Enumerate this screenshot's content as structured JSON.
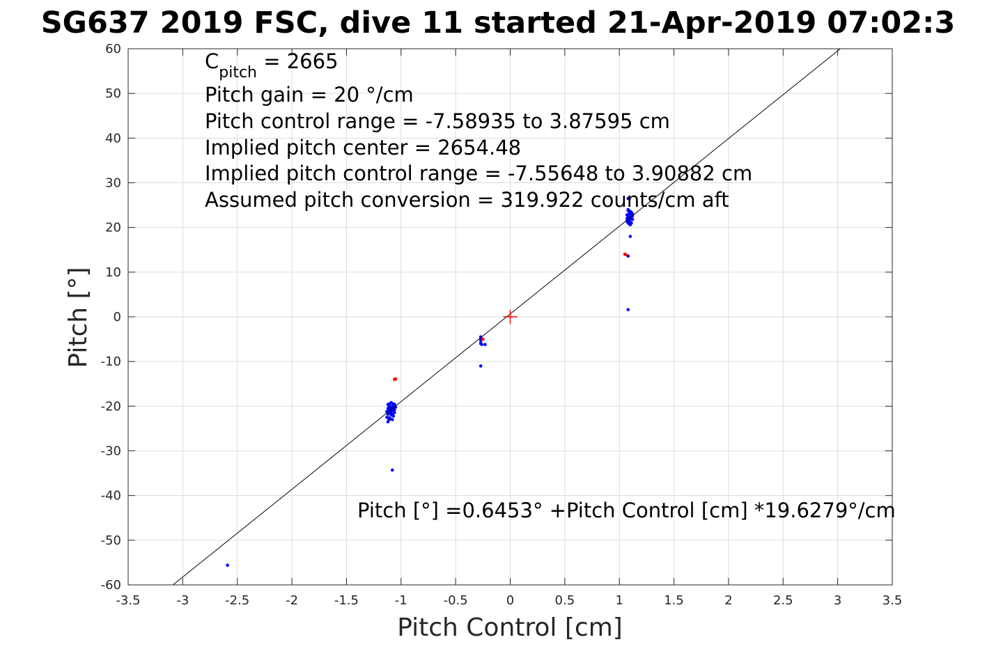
{
  "chart_data": {
    "type": "scatter",
    "title": "SG637 2019 FSC, dive 11 started 21-Apr-2019 07:02:3",
    "xlabel": "Pitch Control [cm]",
    "ylabel": "Pitch [°]",
    "xlim": [
      -3.5,
      3.5
    ],
    "ylim": [
      -60,
      60
    ],
    "grid": true,
    "x_ticks": [
      -3.5,
      -3,
      -2.5,
      -2,
      -1.5,
      -1,
      -0.5,
      0,
      0.5,
      1,
      1.5,
      2,
      2.5,
      3,
      3.5
    ],
    "x_tick_labels": [
      "-3.5",
      "-3",
      "-2.5",
      "-2",
      "-1.5",
      "-1",
      "-0.5",
      "0",
      "0.5",
      "1",
      "1.5",
      "2",
      "2.5",
      "3",
      "3.5"
    ],
    "y_ticks": [
      -60,
      -50,
      -40,
      -30,
      -20,
      -10,
      0,
      10,
      20,
      30,
      40,
      50,
      60
    ],
    "y_tick_labels": [
      "-60",
      "-50",
      "-40",
      "-30",
      "-20",
      "-10",
      "0",
      "10",
      "20",
      "30",
      "40",
      "50",
      "60"
    ],
    "annotations": {
      "cpitch_base": "C",
      "cpitch_sub": "pitch",
      "cpitch_rest": " = 2665",
      "lines": [
        "Pitch gain = 20 °/cm",
        "Pitch control range = -7.58935 to 3.87595 cm",
        "Implied pitch center = 2654.48",
        "Implied pitch control range = -7.55648 to 3.90882 cm",
        "Assumed pitch conversion = 319.922 counts/cm aft"
      ],
      "fit_equation": "Pitch [°] =0.6453° +Pitch Control [cm] *19.6279°/cm"
    },
    "fit_line": {
      "intercept": 0.6453,
      "slope": 19.6279,
      "color": "#000000"
    },
    "center_marker": {
      "x": 0,
      "y": 0,
      "color": "#ff0000"
    },
    "series": [
      {
        "color": "#0000ff",
        "points": [
          [
            -1.12,
            -20.5
          ],
          [
            -1.11,
            -21.0
          ],
          [
            -1.1,
            -21.5
          ],
          [
            -1.09,
            -22.0
          ],
          [
            -1.08,
            -20.0
          ],
          [
            -1.07,
            -19.5
          ],
          [
            -1.06,
            -20.8
          ],
          [
            -1.13,
            -22.5
          ],
          [
            -1.12,
            -23.5
          ],
          [
            -1.11,
            -19.8
          ],
          [
            -1.1,
            -22.8
          ],
          [
            -1.09,
            -19.2
          ],
          [
            -1.08,
            -21.8
          ],
          [
            -1.07,
            -22.2
          ],
          [
            -1.06,
            -19.6
          ],
          [
            -1.05,
            -20.2
          ],
          [
            -1.12,
            -21.8
          ],
          [
            -1.11,
            -22.6
          ],
          [
            -1.1,
            -20.4
          ],
          [
            -1.09,
            -21.2
          ],
          [
            -1.13,
            -21.2
          ],
          [
            -1.08,
            -23.0
          ],
          [
            -1.07,
            -20.6
          ],
          [
            -1.1,
            -19.4
          ],
          [
            -1.11,
            -20.2
          ],
          [
            -1.06,
            -21.4
          ],
          [
            -1.09,
            -20.6
          ],
          [
            -1.12,
            -19.6
          ],
          [
            -1.08,
            -20.9
          ],
          [
            -1.11,
            -23.0
          ],
          [
            -1.08,
            -34.3
          ],
          [
            -0.27,
            -4.5
          ],
          [
            -0.27,
            -5.2
          ],
          [
            -0.27,
            -5.8
          ],
          [
            -0.26,
            -6.2
          ],
          [
            -0.27,
            -6.0
          ],
          [
            -0.23,
            -6.2
          ],
          [
            -0.26,
            -5.0
          ],
          [
            -0.27,
            -11.0
          ],
          [
            1.07,
            22.0
          ],
          [
            1.08,
            22.5
          ],
          [
            1.09,
            21.5
          ],
          [
            1.1,
            23.0
          ],
          [
            1.11,
            22.2
          ],
          [
            1.12,
            21.8
          ],
          [
            1.08,
            23.8
          ],
          [
            1.09,
            20.8
          ],
          [
            1.1,
            21.2
          ],
          [
            1.07,
            22.8
          ],
          [
            1.11,
            23.4
          ],
          [
            1.12,
            22.6
          ],
          [
            1.08,
            21.0
          ],
          [
            1.09,
            23.2
          ],
          [
            1.1,
            22.0
          ],
          [
            1.07,
            21.4
          ],
          [
            1.11,
            21.0
          ],
          [
            1.08,
            22.2
          ],
          [
            1.09,
            22.4
          ],
          [
            1.1,
            23.6
          ],
          [
            1.12,
            23.0
          ],
          [
            1.08,
            24.0
          ],
          [
            1.1,
            20.6
          ],
          [
            1.08,
            26.5
          ],
          [
            1.1,
            18.0
          ],
          [
            1.08,
            13.6
          ],
          [
            1.08,
            1.6
          ],
          [
            -2.59,
            -55.6
          ]
        ]
      },
      {
        "color": "#ff0000",
        "points": [
          [
            -1.05,
            -13.9
          ],
          [
            -1.06,
            -14.0
          ],
          [
            -0.25,
            -5.0
          ],
          [
            1.06,
            13.9
          ],
          [
            1.05,
            14.0
          ]
        ]
      }
    ]
  }
}
